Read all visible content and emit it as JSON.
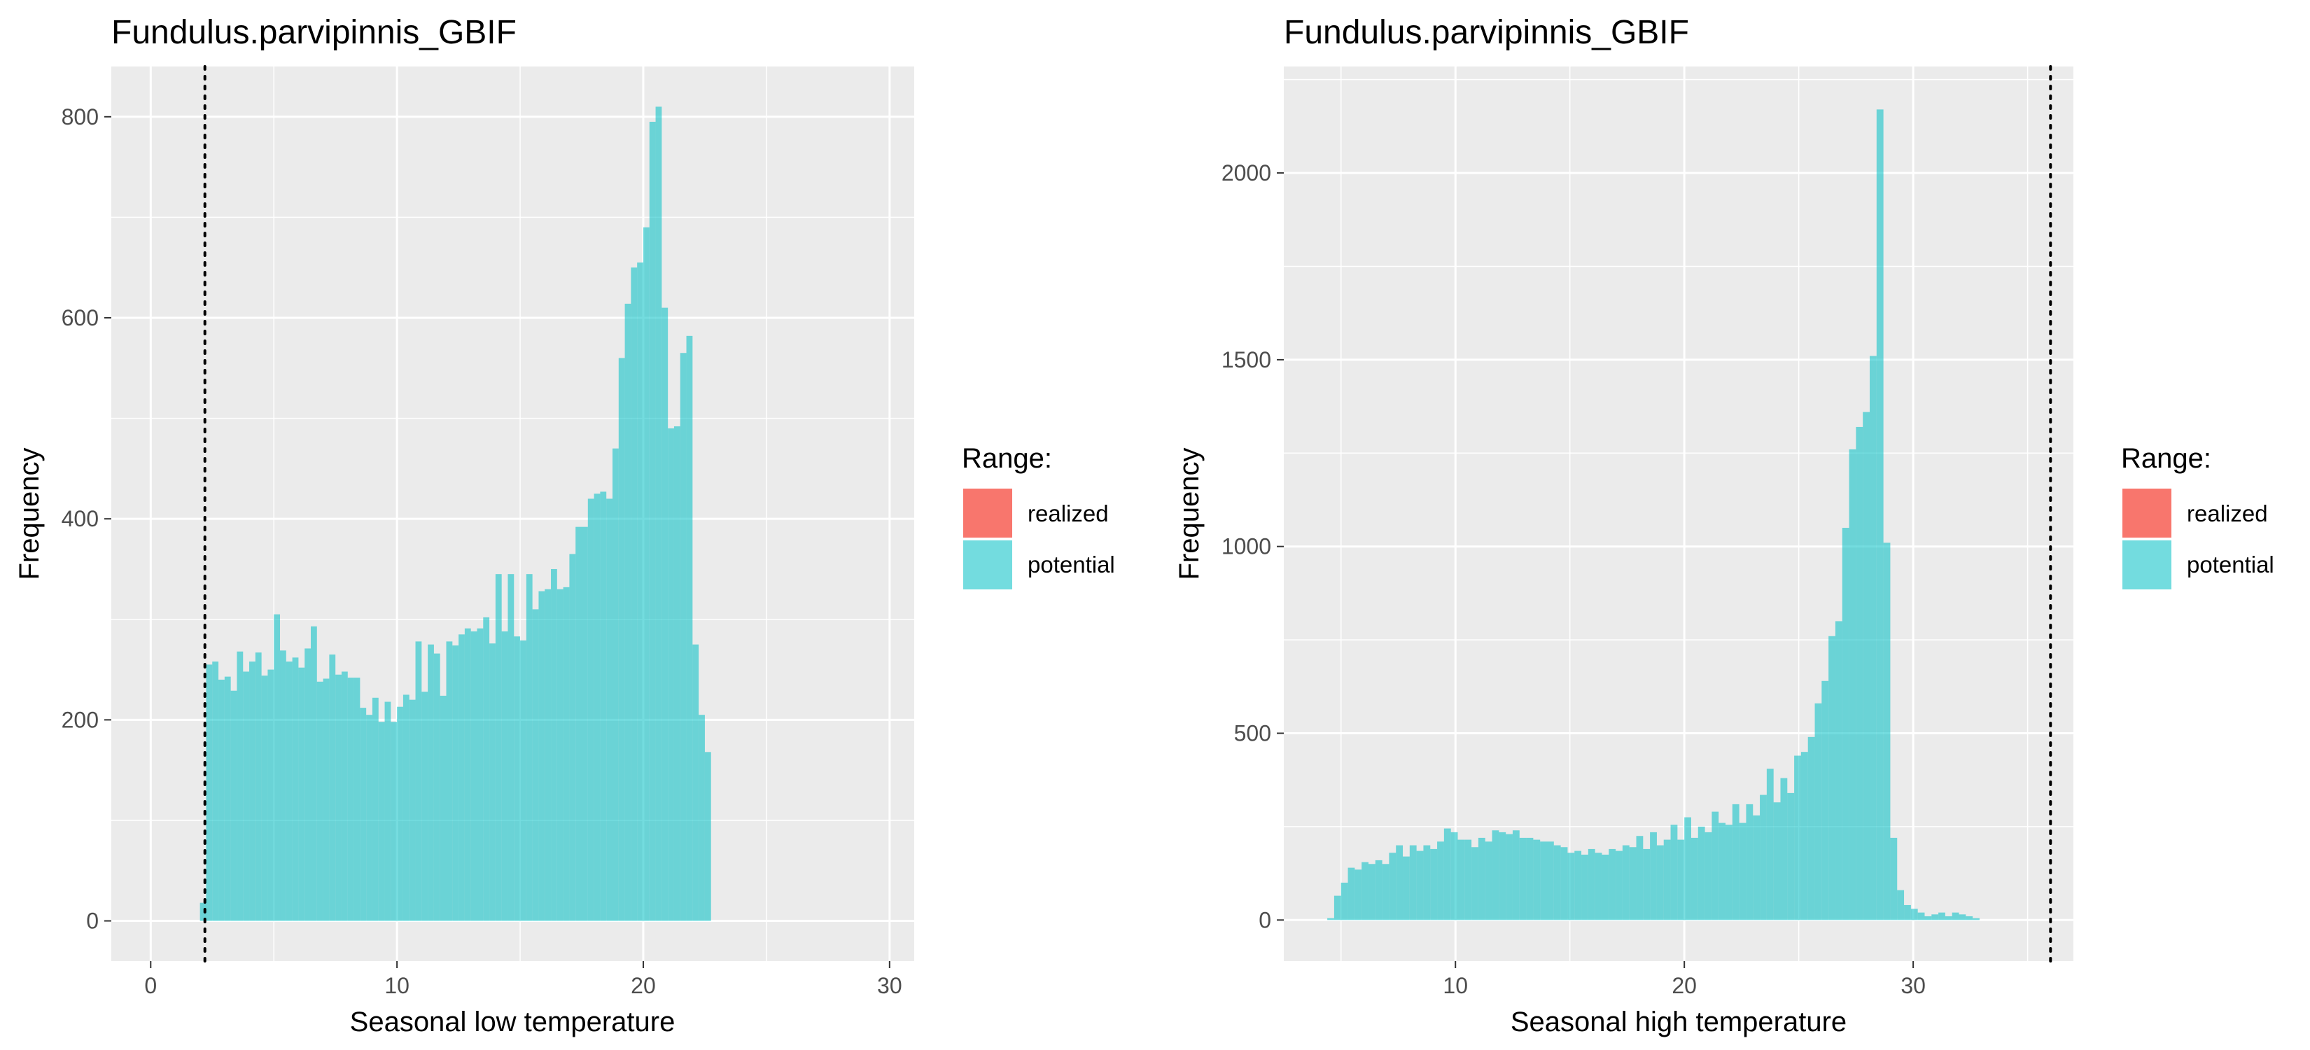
{
  "chart_data": [
    {
      "type": "bar",
      "title": "Fundulus.parvipinnis_GBIF",
      "xlabel": "Seasonal low temperature",
      "ylabel": "Frequency",
      "xlim": [
        -1.6,
        31.0
      ],
      "ylim": [
        -40,
        850
      ],
      "x_ticks": [
        0,
        10,
        20,
        30
      ],
      "y_ticks": [
        0,
        200,
        400,
        600,
        800
      ],
      "grid": true,
      "vline": 2.2,
      "legend": {
        "title": "Range:",
        "entries": [
          "realized",
          "potential"
        ],
        "position": "right"
      },
      "series": [
        {
          "name": "potential",
          "color": "#00BFC4",
          "bin_start": 2.0,
          "bin_width": 0.25,
          "values": [
            18,
            255,
            258,
            240,
            243,
            229,
            268,
            248,
            258,
            267,
            244,
            250,
            305,
            269,
            258,
            262,
            252,
            271,
            293,
            238,
            241,
            265,
            245,
            248,
            242,
            242,
            212,
            205,
            222,
            198,
            218,
            198,
            213,
            225,
            220,
            278,
            228,
            275,
            266,
            224,
            278,
            274,
            285,
            291,
            288,
            291,
            302,
            276,
            345,
            288,
            345,
            283,
            279,
            345,
            310,
            328,
            330,
            350,
            330,
            332,
            365,
            392,
            392,
            420,
            425,
            427,
            420,
            470,
            560,
            614,
            650,
            655,
            690,
            795,
            810,
            610,
            490,
            492,
            565,
            582,
            275,
            205,
            168
          ]
        },
        {
          "name": "realized",
          "color": "#F8766D",
          "values": []
        }
      ]
    },
    {
      "type": "bar",
      "title": "Fundulus.parvipinnis_GBIF",
      "xlabel": "Seasonal high temperature",
      "ylabel": "Frequency",
      "xlim": [
        2.5,
        37.0
      ],
      "ylim": [
        -110,
        2285
      ],
      "x_ticks": [
        10,
        20,
        30
      ],
      "y_ticks": [
        0,
        500,
        1000,
        1500,
        2000
      ],
      "grid": true,
      "vline": 36.0,
      "legend": {
        "title": "Range:",
        "entries": [
          "realized",
          "potential"
        ],
        "position": "right"
      },
      "series": [
        {
          "name": "potential",
          "color": "#00BFC4",
          "bin_start": 4.4,
          "bin_width": 0.3,
          "values": [
            5,
            65,
            100,
            140,
            135,
            155,
            150,
            160,
            150,
            180,
            200,
            170,
            200,
            185,
            200,
            190,
            210,
            245,
            235,
            215,
            215,
            195,
            220,
            210,
            240,
            235,
            230,
            240,
            220,
            220,
            215,
            210,
            210,
            200,
            195,
            180,
            185,
            175,
            190,
            180,
            175,
            190,
            185,
            200,
            195,
            225,
            190,
            235,
            200,
            215,
            255,
            215,
            275,
            220,
            250,
            235,
            290,
            260,
            255,
            310,
            260,
            310,
            280,
            335,
            405,
            315,
            380,
            340,
            440,
            450,
            490,
            580,
            640,
            760,
            800,
            1050,
            1260,
            1320,
            1360,
            1510,
            2170,
            1010,
            220,
            80,
            40,
            30,
            20,
            10,
            15,
            20,
            10,
            20,
            15,
            10,
            5
          ]
        },
        {
          "name": "realized",
          "color": "#F8766D",
          "values": []
        }
      ]
    }
  ]
}
